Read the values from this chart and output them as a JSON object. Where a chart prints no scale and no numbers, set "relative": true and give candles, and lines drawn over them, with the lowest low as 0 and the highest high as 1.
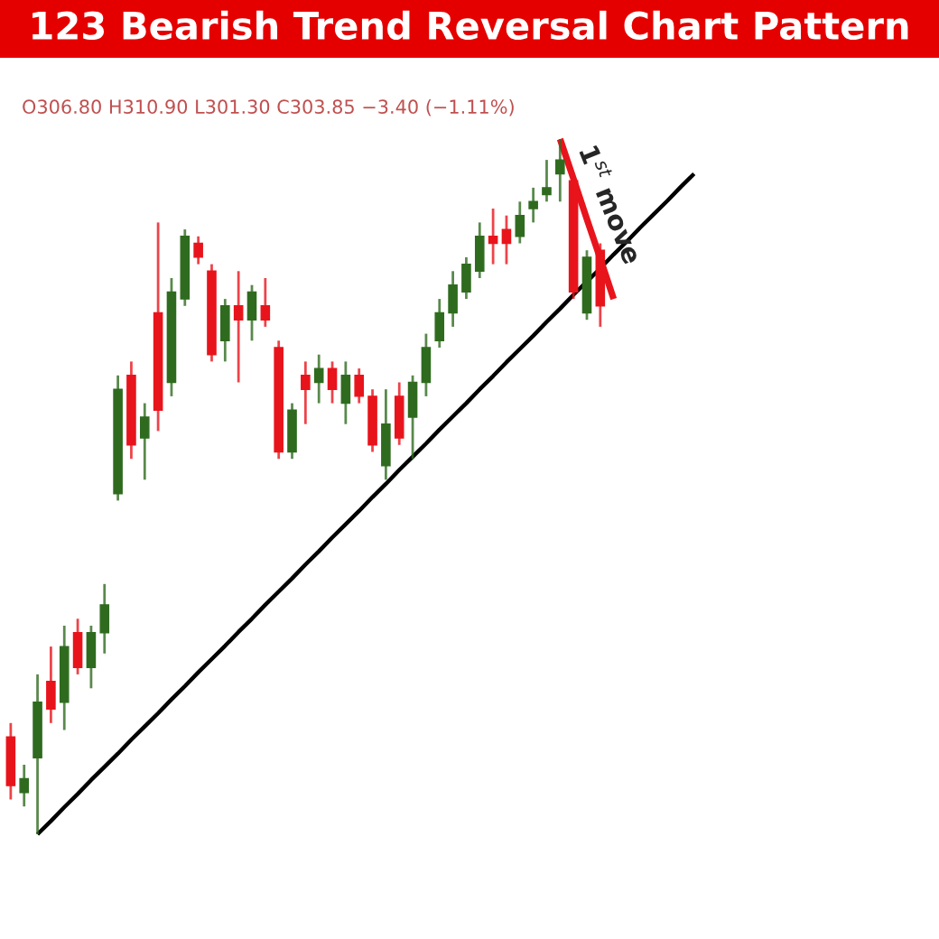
{
  "chart_data": {
    "type": "candlestick",
    "title": "123 Bearish Trend Reversal Chart Pattern",
    "relative": true,
    "annotations": [
      "O306.80 H310.90 L301.30 C303.85 −3.40 (−1.11%)",
      "1$^{st}$ move"
    ],
    "categories": [
      null,
      null,
      null,
      null,
      null,
      null,
      null,
      null,
      null,
      null,
      null,
      null,
      null,
      null,
      null,
      null,
      null,
      null,
      null,
      null,
      null,
      null,
      null,
      null,
      null,
      null,
      null,
      null,
      null,
      null,
      null,
      null,
      null,
      null,
      null,
      null,
      null,
      null,
      null,
      null,
      null,
      null,
      null,
      null,
      null,
      null,
      null,
      null,
      null,
      null,
      null,
      null
    ],
    "ohlc": [
      [
        0.14,
        0.16,
        0.05,
        0.07
      ],
      [
        0.06,
        0.1,
        0.04,
        0.08
      ],
      [
        0.11,
        0.23,
        0.0,
        0.19
      ],
      [
        0.22,
        0.27,
        0.16,
        0.18
      ],
      [
        0.19,
        0.3,
        0.15,
        0.27
      ],
      [
        0.29,
        0.31,
        0.23,
        0.24
      ],
      [
        0.24,
        0.3,
        0.21,
        0.29
      ],
      [
        0.29,
        0.36,
        0.26,
        0.33
      ],
      [
        0.49,
        0.66,
        0.48,
        0.64
      ],
      [
        0.66,
        0.68,
        0.54,
        0.56
      ],
      [
        0.57,
        0.62,
        0.51,
        0.6
      ],
      [
        0.75,
        0.88,
        0.58,
        0.61
      ],
      [
        0.65,
        0.8,
        0.63,
        0.78
      ],
      [
        0.77,
        0.87,
        0.76,
        0.86
      ],
      [
        0.85,
        0.86,
        0.82,
        0.83
      ],
      [
        0.81,
        0.82,
        0.68,
        0.69
      ],
      [
        0.71,
        0.77,
        0.68,
        0.76
      ],
      [
        0.76,
        0.81,
        0.65,
        0.74
      ],
      [
        0.74,
        0.79,
        0.71,
        0.78
      ],
      [
        0.76,
        0.8,
        0.73,
        0.74
      ],
      [
        0.7,
        0.71,
        0.54,
        0.55
      ],
      [
        0.55,
        0.62,
        0.54,
        0.61
      ],
      [
        0.66,
        0.68,
        0.59,
        0.64
      ],
      [
        0.65,
        0.69,
        0.62,
        0.67
      ],
      [
        0.67,
        0.68,
        0.62,
        0.64
      ],
      [
        0.62,
        0.68,
        0.59,
        0.66
      ],
      [
        0.66,
        0.67,
        0.62,
        0.63
      ],
      [
        0.63,
        0.64,
        0.55,
        0.56
      ],
      [
        0.53,
        0.64,
        0.51,
        0.59
      ],
      [
        0.63,
        0.65,
        0.56,
        0.57
      ],
      [
        0.6,
        0.66,
        0.54,
        0.65
      ],
      [
        0.65,
        0.72,
        0.63,
        0.7
      ],
      [
        0.71,
        0.77,
        0.7,
        0.75
      ],
      [
        0.75,
        0.81,
        0.73,
        0.79
      ],
      [
        0.78,
        0.83,
        0.77,
        0.82
      ],
      [
        0.81,
        0.88,
        0.8,
        0.86
      ],
      [
        0.86,
        0.9,
        0.82,
        0.85
      ],
      [
        0.87,
        0.89,
        0.82,
        0.85
      ],
      [
        0.86,
        0.91,
        0.85,
        0.89
      ],
      [
        0.9,
        0.93,
        0.88,
        0.91
      ],
      [
        0.92,
        0.97,
        0.91,
        0.93
      ],
      [
        0.95,
        1.0,
        0.91,
        0.97
      ],
      [
        0.94,
        0.94,
        0.77,
        0.78
      ],
      [
        0.75,
        0.84,
        0.74,
        0.83
      ],
      [
        0.84,
        0.85,
        0.73,
        0.76
      ],
      null,
      null,
      null,
      null,
      null,
      null,
      null
    ],
    "colors": [
      "#e8141c",
      "#2f6b1f",
      "#2f6b1f",
      "#e8141c",
      "#2f6b1f",
      "#e8141c",
      "#2f6b1f",
      "#2f6b1f",
      "#2f6b1f",
      "#e8141c",
      "#2f6b1f",
      "#e8141c",
      "#2f6b1f",
      "#2f6b1f",
      "#e8141c",
      "#e8141c",
      "#2f6b1f",
      "#e8141c",
      "#2f6b1f",
      "#e8141c",
      "#e8141c",
      "#2f6b1f",
      "#e8141c",
      "#2f6b1f",
      "#e8141c",
      "#2f6b1f",
      "#e8141c",
      "#e8141c",
      "#2f6b1f",
      "#e8141c",
      "#2f6b1f",
      "#2f6b1f",
      "#2f6b1f",
      "#2f6b1f",
      "#2f6b1f",
      "#2f6b1f",
      "#e8141c",
      "#e8141c",
      "#2f6b1f",
      "#2f6b1f",
      "#2f6b1f",
      "#2f6b1f",
      "#e8141c",
      "#2f6b1f",
      "#e8141c",
      null,
      null,
      null,
      null,
      null,
      null,
      null
    ],
    "series": [
      {
        "type": "line",
        "color": "#000000",
        "values": [
          null,
          null,
          0.0,
          0.019,
          0.039,
          0.058,
          0.078,
          0.097,
          0.116,
          0.136,
          0.155,
          0.174,
          0.194,
          0.213,
          0.233,
          0.252,
          0.271,
          0.291,
          0.31,
          0.33,
          0.349,
          0.368,
          0.388,
          0.407,
          0.427,
          0.446,
          0.465,
          0.485,
          0.504,
          0.524,
          0.543,
          0.562,
          0.582,
          0.601,
          0.62,
          0.64,
          0.659,
          0.679,
          0.698,
          0.717,
          0.737,
          0.756,
          0.776,
          0.795,
          0.814,
          0.834,
          0.853,
          0.873,
          0.892,
          0.911,
          0.931,
          0.95
        ]
      },
      {
        "type": "line",
        "color": "#e8141c",
        "values": [
          null,
          null,
          null,
          null,
          null,
          null,
          null,
          null,
          null,
          null,
          null,
          null,
          null,
          null,
          null,
          null,
          null,
          null,
          null,
          null,
          null,
          null,
          null,
          null,
          null,
          null,
          null,
          null,
          null,
          null,
          null,
          null,
          null,
          null,
          null,
          null,
          null,
          null,
          null,
          null,
          null,
          1.0,
          0.943,
          0.885,
          0.828,
          0.77,
          null,
          null,
          null,
          null,
          null,
          null
        ]
      }
    ]
  }
}
